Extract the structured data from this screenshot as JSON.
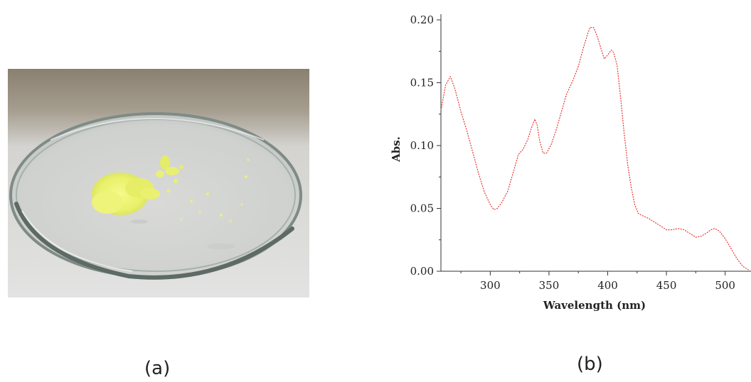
{
  "panels": {
    "a": {
      "caption": "(a)"
    },
    "b": {
      "caption": "(b)"
    }
  },
  "chart_data": {
    "type": "line",
    "title": "",
    "xlabel": "Wavelength (nm)",
    "ylabel": "Abs.",
    "xlim": [
      258,
      522
    ],
    "ylim": [
      0,
      0.2
    ],
    "xticks": [
      300,
      350,
      400,
      450,
      500
    ],
    "yticks": [
      0.0,
      0.05,
      0.1,
      0.15,
      0.2
    ],
    "ytick_labels": [
      "0.00",
      "0.05",
      "0.10",
      "0.15",
      "0.20"
    ],
    "grid": false,
    "legend": "none",
    "line_color": "#e53935",
    "line_style": "dotted",
    "series": [
      {
        "x": [
          258,
          262,
          266,
          270,
          275,
          280,
          285,
          290,
          295,
          300,
          303,
          306,
          310,
          315,
          320,
          324,
          328,
          332,
          335,
          338,
          340,
          342,
          345,
          348,
          352,
          356,
          360,
          365,
          370,
          375,
          380,
          383,
          385,
          388,
          391,
          394,
          397,
          400,
          403,
          405,
          408,
          411,
          414,
          417,
          420,
          423,
          426,
          430,
          435,
          440,
          445,
          450,
          455,
          460,
          465,
          470,
          475,
          480,
          485,
          488,
          491,
          495,
          500,
          505,
          510,
          515,
          520
        ],
        "y": [
          0.128,
          0.148,
          0.155,
          0.145,
          0.127,
          0.112,
          0.095,
          0.078,
          0.063,
          0.053,
          0.049,
          0.05,
          0.055,
          0.064,
          0.08,
          0.093,
          0.097,
          0.105,
          0.114,
          0.121,
          0.116,
          0.104,
          0.094,
          0.094,
          0.101,
          0.112,
          0.125,
          0.141,
          0.151,
          0.163,
          0.18,
          0.189,
          0.194,
          0.194,
          0.187,
          0.178,
          0.169,
          0.172,
          0.176,
          0.174,
          0.164,
          0.138,
          0.11,
          0.085,
          0.067,
          0.053,
          0.046,
          0.044,
          0.042,
          0.039,
          0.036,
          0.033,
          0.033,
          0.034,
          0.033,
          0.03,
          0.027,
          0.028,
          0.031,
          0.033,
          0.034,
          0.032,
          0.026,
          0.018,
          0.01,
          0.004,
          0.001
        ]
      }
    ]
  }
}
